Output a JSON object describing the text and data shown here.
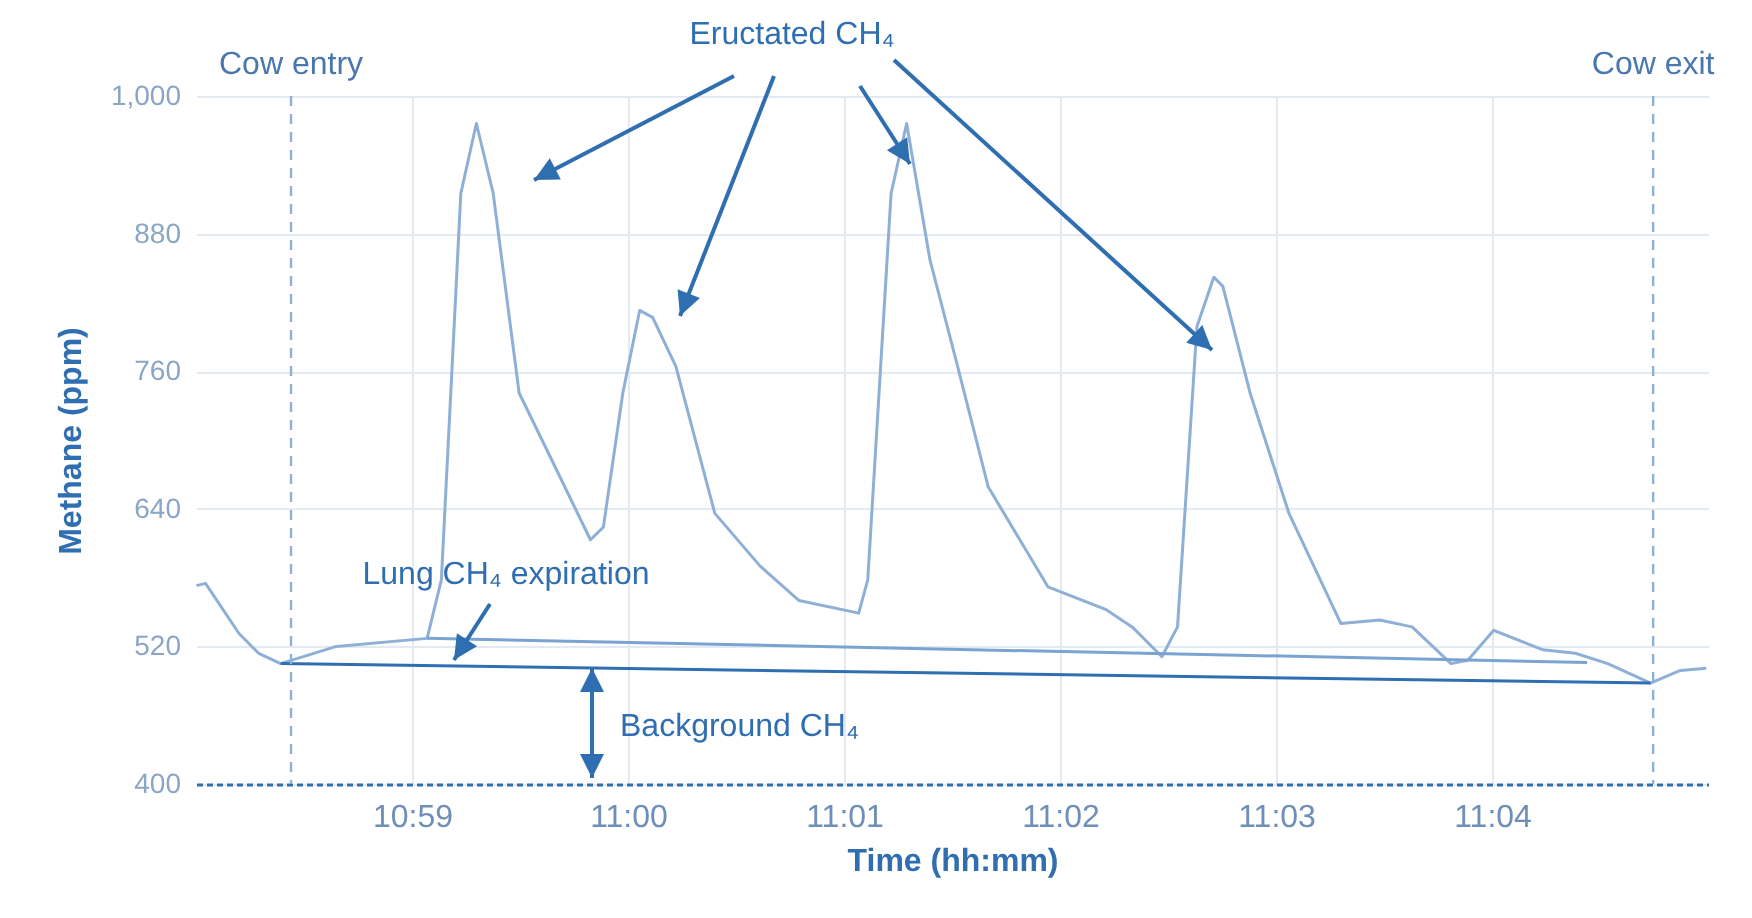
{
  "chart_data": {
    "type": "line",
    "xlabel": "Time (hh:mm)",
    "ylabel": "Methane (ppm)",
    "xlim": [
      10.966667,
      11.083333
    ],
    "ylim": [
      400,
      1000
    ],
    "xticks": [
      {
        "value": 10.983333,
        "label": "10:59"
      },
      {
        "value": 11,
        "label": "11:00"
      },
      {
        "value": 11.016667,
        "label": "11:01"
      },
      {
        "value": 11.033333,
        "label": "11:02"
      },
      {
        "value": 11.05,
        "label": "11:03"
      },
      {
        "value": 11.066667,
        "label": "11:04"
      }
    ],
    "yticks": [
      400,
      520,
      640,
      760,
      880,
      {
        "value": 1000,
        "label": "1,000"
      }
    ],
    "grid": true,
    "series": [
      {
        "color": "#8fb0d6",
        "x": [
          10.9667,
          10.9674,
          10.97,
          10.9715,
          10.9732,
          10.9775,
          10.9845,
          10.9856,
          10.9871,
          10.9883,
          10.9896,
          10.9916,
          10.9941,
          10.9971,
          10.9981,
          10.9996,
          11.0009,
          11.0019,
          11.0037,
          11.0067,
          11.0102,
          11.0132,
          11.0178,
          11.0185,
          11.0203,
          11.0215,
          11.0233,
          11.0253,
          11.0278,
          11.0324,
          11.0369,
          11.0389,
          11.0412,
          11.0424,
          11.0439,
          11.0452,
          11.0459,
          11.048,
          11.051,
          11.055,
          11.058,
          11.0605,
          11.0635,
          11.0648,
          11.0668,
          11.0706,
          11.0731,
          11.0756,
          11.0789,
          11.0812,
          11.0832
        ],
        "values": [
          573,
          575,
          531,
          514,
          505,
          520,
          527,
          578,
          915,
          976,
          915,
          741,
          683,
          613,
          624,
          741,
          813,
          807,
          764,
          636,
          590,
          560,
          549,
          578,
          915,
          976,
          857,
          770,
          659,
          572,
          552,
          537,
          511,
          537,
          799,
          842,
          834,
          741,
          636,
          540,
          543,
          537,
          505,
          508,
          534,
          517,
          514,
          505,
          488,
          499,
          501
        ]
      },
      {
        "color": "#7aa3d2",
        "x": [
          10.9845,
          11.074
        ],
        "values": [
          527,
          506
        ]
      },
      {
        "color": "#2f6eb0",
        "x": [
          10.9732,
          11.0789
        ],
        "values": [
          505,
          488
        ]
      }
    ],
    "ref_lines": [
      {
        "axis": "x",
        "value": 10.974,
        "label": "Cow entry",
        "color": "#8fb0d6",
        "line_style": "dashed"
      },
      {
        "axis": "x",
        "value": 11.0791,
        "label": "Cow exit",
        "color": "#8fb0d6",
        "line_style": "dashed"
      }
    ],
    "annotations": [
      "Eructated CH₄",
      "Lung CH₄ expiration",
      "Background CH₄"
    ]
  }
}
